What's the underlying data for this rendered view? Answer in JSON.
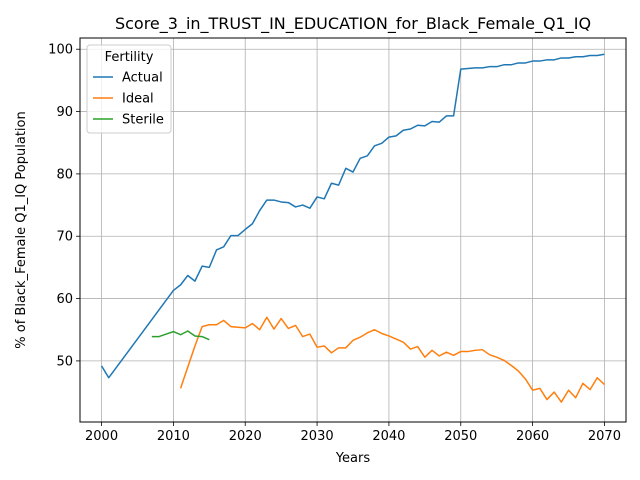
{
  "chart_data": {
    "type": "line",
    "title": "Score_3_in_TRUST_IN_EDUCATION_for_Black_Female_Q1_IQ",
    "xlabel": "Years",
    "ylabel": "% of Black_Female Q1_IQ Population",
    "xlim": [
      1997,
      2073
    ],
    "ylim": [
      40.2,
      101.8
    ],
    "xticks": [
      2000,
      2010,
      2020,
      2030,
      2040,
      2050,
      2060,
      2070
    ],
    "yticks": [
      50,
      60,
      70,
      80,
      90,
      100
    ],
    "grid": true,
    "legend": {
      "title": "Fertility",
      "position": "top-left"
    },
    "series": [
      {
        "name": "Actual",
        "color": "#1f77b4",
        "x": [
          2000,
          2001,
          2010,
          2011,
          2012,
          2013,
          2014,
          2015,
          2016,
          2017,
          2018,
          2019,
          2020,
          2021,
          2022,
          2023,
          2024,
          2025,
          2026,
          2027,
          2028,
          2029,
          2030,
          2031,
          2032,
          2033,
          2034,
          2035,
          2036,
          2037,
          2038,
          2039,
          2040,
          2041,
          2042,
          2043,
          2044,
          2045,
          2046,
          2047,
          2048,
          2049,
          2050,
          2051,
          2052,
          2053,
          2054,
          2055,
          2056,
          2057,
          2058,
          2059,
          2060,
          2061,
          2062,
          2063,
          2064,
          2065,
          2066,
          2067,
          2068,
          2069,
          2070
        ],
        "y": [
          49.2,
          47.3,
          61.3,
          62.2,
          63.7,
          62.8,
          65.2,
          65.0,
          67.8,
          68.3,
          70.1,
          70.1,
          71.1,
          72.0,
          74.1,
          75.8,
          75.8,
          75.5,
          75.4,
          74.7,
          75.0,
          74.5,
          76.3,
          76.0,
          78.5,
          78.2,
          80.9,
          80.3,
          82.5,
          82.9,
          84.5,
          84.9,
          85.9,
          86.1,
          87.0,
          87.2,
          87.8,
          87.7,
          88.4,
          88.3,
          89.3,
          89.3,
          96.8,
          96.9,
          97.0,
          97.0,
          97.2,
          97.2,
          97.5,
          97.5,
          97.8,
          97.8,
          98.1,
          98.1,
          98.3,
          98.3,
          98.6,
          98.6,
          98.8,
          98.8,
          99.0,
          99.0,
          99.2
        ]
      },
      {
        "name": "Ideal",
        "color": "#ff7f0e",
        "x": [
          2011,
          2012,
          2013,
          2014,
          2015,
          2016,
          2017,
          2018,
          2019,
          2020,
          2021,
          2022,
          2023,
          2024,
          2025,
          2026,
          2027,
          2028,
          2029,
          2030,
          2031,
          2032,
          2033,
          2034,
          2035,
          2036,
          2037,
          2038,
          2039,
          2040,
          2041,
          2042,
          2043,
          2044,
          2045,
          2046,
          2047,
          2048,
          2049,
          2050,
          2051,
          2052,
          2053,
          2054,
          2055,
          2056,
          2057,
          2058,
          2059,
          2060,
          2061,
          2062,
          2063,
          2064,
          2065,
          2066,
          2067,
          2068,
          2069,
          2070
        ],
        "y": [
          45.6,
          49.0,
          52.4,
          55.5,
          55.8,
          55.8,
          56.5,
          55.5,
          55.4,
          55.3,
          56.0,
          55.0,
          57.0,
          55.1,
          56.8,
          55.2,
          55.7,
          53.9,
          54.3,
          52.2,
          52.4,
          51.3,
          52.1,
          52.1,
          53.3,
          53.8,
          54.5,
          55.0,
          54.4,
          54.0,
          53.5,
          53.0,
          51.9,
          52.3,
          50.6,
          51.7,
          50.8,
          51.4,
          50.9,
          51.5,
          51.5,
          51.7,
          51.8,
          51.0,
          50.6,
          50.1,
          49.3,
          48.4,
          47.1,
          45.3,
          45.6,
          43.8,
          45.0,
          43.4,
          45.3,
          44.1,
          46.4,
          45.4,
          47.3,
          46.2
        ]
      },
      {
        "name": "Sterile",
        "color": "#2ca02c",
        "x": [
          2007,
          2008,
          2009,
          2010,
          2011,
          2012,
          2013,
          2014,
          2015
        ],
        "y": [
          53.9,
          53.9,
          54.3,
          54.7,
          54.2,
          54.8,
          54.0,
          53.9,
          53.4
        ]
      }
    ]
  }
}
